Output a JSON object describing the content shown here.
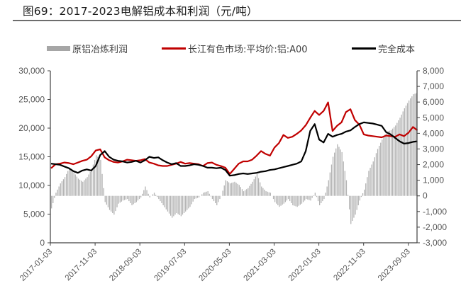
{
  "title": "图69：2017-2023电解铝成本和利润（元/吨）",
  "legend": {
    "profit": "原铝冶炼利润",
    "price": "长江有色市场:平均价:铝:A00",
    "cost": "完全成本"
  },
  "colors": {
    "profit": "#a6a6a6",
    "price": "#c00000",
    "cost": "#000000",
    "axis": "#404040"
  },
  "chart_data": {
    "type": "line+bar",
    "title": "图69：2017-2023电解铝成本和利润（元/吨）",
    "xlabel": "",
    "ylabel_left": "元/吨",
    "ylabel_right": "元/吨",
    "ylim_left": [
      0,
      30000
    ],
    "ylim_right": [
      -3000,
      8000
    ],
    "yticks_left": [
      "30,000",
      "25,000",
      "20,000",
      "15,000",
      "10,000",
      "5,000",
      "0"
    ],
    "yticks_right": [
      "8,000",
      "7,000",
      "6,000",
      "5,000",
      "4,000",
      "3,000",
      "2,000",
      "1,000",
      "0",
      "-1,000",
      "-2,000",
      "-3,000"
    ],
    "xticks": [
      "2017-01-03",
      "2017-11-03",
      "2018-09-03",
      "2019-07-03",
      "2020-05-03",
      "2021-03-03",
      "2022-01-03",
      "2022-11-03",
      "2023-09-03"
    ],
    "legend_position": "top",
    "grid": false,
    "months": [
      "2017-01",
      "2017-02",
      "2017-03",
      "2017-04",
      "2017-05",
      "2017-06",
      "2017-07",
      "2017-08",
      "2017-09",
      "2017-10",
      "2017-11",
      "2017-12",
      "2018-01",
      "2018-02",
      "2018-03",
      "2018-04",
      "2018-05",
      "2018-06",
      "2018-07",
      "2018-08",
      "2018-09",
      "2018-10",
      "2018-11",
      "2018-12",
      "2019-01",
      "2019-02",
      "2019-03",
      "2019-04",
      "2019-05",
      "2019-06",
      "2019-07",
      "2019-08",
      "2019-09",
      "2019-10",
      "2019-11",
      "2019-12",
      "2020-01",
      "2020-02",
      "2020-03",
      "2020-04",
      "2020-05",
      "2020-06",
      "2020-07",
      "2020-08",
      "2020-09",
      "2020-10",
      "2020-11",
      "2020-12",
      "2021-01",
      "2021-02",
      "2021-03",
      "2021-04",
      "2021-05",
      "2021-06",
      "2021-07",
      "2021-08",
      "2021-09",
      "2021-10",
      "2021-11",
      "2021-12",
      "2022-01",
      "2022-02",
      "2022-03",
      "2022-04",
      "2022-05",
      "2022-06",
      "2022-07",
      "2022-08",
      "2022-09",
      "2022-10",
      "2022-11",
      "2022-12",
      "2023-01",
      "2023-02",
      "2023-03",
      "2023-04",
      "2023-05",
      "2023-06",
      "2023-07",
      "2023-08",
      "2023-09",
      "2023-10",
      "2023-11"
    ],
    "series": [
      {
        "name": "原铝冶炼利润",
        "axis": "right",
        "type": "bar",
        "values": [
          -800,
          200,
          800,
          1200,
          1800,
          1500,
          1100,
          900,
          1200,
          1700,
          2600,
          2300,
          -400,
          -900,
          -1200,
          -500,
          -300,
          -200,
          -600,
          -400,
          -100,
          600,
          -100,
          200,
          -200,
          -600,
          -1000,
          -1400,
          -1100,
          -1300,
          -1000,
          -700,
          -200,
          -100,
          200,
          300,
          -200,
          -600,
          0,
          1000,
          800,
          900,
          700,
          300,
          500,
          900,
          1400,
          600,
          300,
          200,
          -400,
          -700,
          -500,
          -200,
          -600,
          -700,
          -500,
          -200,
          -300,
          200,
          -600,
          -200,
          1000,
          2500,
          3300,
          2800,
          1000,
          -1800,
          -1200,
          -300,
          400,
          1600,
          2200,
          3000,
          3600,
          4100,
          4200,
          4500,
          5000,
          5600,
          6100,
          6500,
          6600
        ]
      },
      {
        "name": "长江有色市场:平均价:铝:A00",
        "axis": "left",
        "type": "line",
        "values": [
          13000,
          13700,
          13800,
          14000,
          13900,
          13700,
          14000,
          14300,
          14500,
          15100,
          16100,
          16300,
          14900,
          14400,
          14100,
          14000,
          14200,
          14500,
          14400,
          14300,
          14400,
          14600,
          14000,
          13800,
          13500,
          13400,
          13400,
          13600,
          13800,
          14100,
          13800,
          13900,
          13800,
          13700,
          13400,
          13900,
          14000,
          13600,
          13400,
          13100,
          12000,
          12900,
          13800,
          14200,
          14200,
          14500,
          15200,
          16000,
          15500,
          15200,
          16600,
          17400,
          18800,
          18300,
          18500,
          19000,
          19600,
          20500,
          21800,
          23000,
          22300,
          23000,
          24500,
          19500,
          20400,
          21000,
          22800,
          23300,
          21400,
          20600,
          18900,
          18700,
          18600,
          18500,
          18400,
          18700,
          18600,
          18500,
          18900,
          18600,
          19200,
          20200,
          19600
        ]
      },
      {
        "name": "完全成本",
        "axis": "left",
        "type": "line",
        "values": [
          13800,
          13700,
          13600,
          13300,
          13000,
          12500,
          12200,
          12600,
          12800,
          12600,
          13400,
          15300,
          16000,
          15000,
          14500,
          14300,
          14200,
          14000,
          14100,
          14300,
          14000,
          14400,
          15000,
          14800,
          14900,
          14400,
          14000,
          13700,
          13900,
          13400,
          13400,
          13500,
          13700,
          13600,
          13400,
          13100,
          13100,
          13000,
          13100,
          12700,
          11700,
          11800,
          12000,
          12100,
          12000,
          12100,
          12200,
          12400,
          12500,
          12700,
          12800,
          13000,
          13200,
          13400,
          13600,
          13800,
          14200,
          16000,
          19500,
          20700,
          18000,
          17500,
          19000,
          18500,
          18800,
          19000,
          19400,
          19600,
          20200,
          20700,
          21000,
          20900,
          20800,
          20600,
          20400,
          19300,
          18900,
          18300,
          17700,
          17300,
          17400,
          17600,
          17700
        ]
      }
    ]
  }
}
